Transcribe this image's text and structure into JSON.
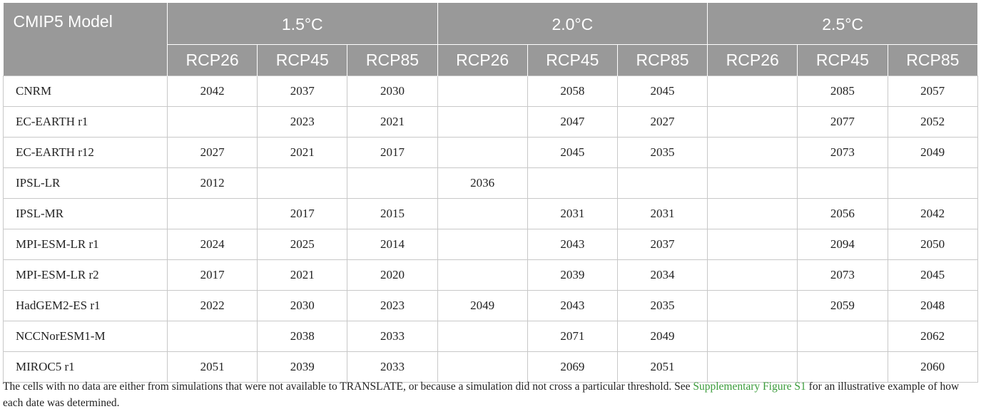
{
  "table": {
    "model_header": "CMIP5 Model",
    "groups": [
      "1.5°C",
      "2.0°C",
      "2.5°C"
    ],
    "subheaders": [
      "RCP26",
      "RCP45",
      "RCP85",
      "RCP26",
      "RCP45",
      "RCP85",
      "RCP26",
      "RCP45",
      "RCP85"
    ],
    "rows": [
      {
        "model": "CNRM",
        "values": [
          "2042",
          "2037",
          "2030",
          "",
          "2058",
          "2045",
          "",
          "2085",
          "2057"
        ]
      },
      {
        "model": "EC-EARTH r1",
        "values": [
          "",
          "2023",
          "2021",
          "",
          "2047",
          "2027",
          "",
          "2077",
          "2052"
        ]
      },
      {
        "model": "EC-EARTH r12",
        "values": [
          "2027",
          "2021",
          "2017",
          "",
          "2045",
          "2035",
          "",
          "2073",
          "2049"
        ]
      },
      {
        "model": "IPSL-LR",
        "values": [
          "2012",
          "",
          "",
          "2036",
          "",
          "",
          "",
          "",
          ""
        ]
      },
      {
        "model": "IPSL-MR",
        "values": [
          "",
          "2017",
          "2015",
          "",
          "2031",
          "2031",
          "",
          "2056",
          "2042"
        ]
      },
      {
        "model": "MPI-ESM-LR r1",
        "values": [
          "2024",
          "2025",
          "2014",
          "",
          "2043",
          "2037",
          "",
          "2094",
          "2050"
        ]
      },
      {
        "model": "MPI-ESM-LR r2",
        "values": [
          "2017",
          "2021",
          "2020",
          "",
          "2039",
          "2034",
          "",
          "2073",
          "2045"
        ]
      },
      {
        "model": "HadGEM2-ES r1",
        "values": [
          "2022",
          "2030",
          "2023",
          "2049",
          "2043",
          "2035",
          "",
          "2059",
          "2048"
        ]
      },
      {
        "model": "NCCNorESM1-M",
        "values": [
          "",
          "2038",
          "2033",
          "",
          "2071",
          "2049",
          "",
          "",
          "2062"
        ]
      },
      {
        "model": "MIROC5 r1",
        "values": [
          "2051",
          "2039",
          "2033",
          "",
          "2069",
          "2051",
          "",
          "",
          "2060"
        ]
      }
    ]
  },
  "footnote": {
    "text_before": "The cells with no data are either from simulations that were not available to TRANSLATE, or because a simulation did not cross a particular threshold. See ",
    "link_text": "Supplementary Figure S1",
    "text_after": " for an illustrative example of how each date was determined."
  }
}
